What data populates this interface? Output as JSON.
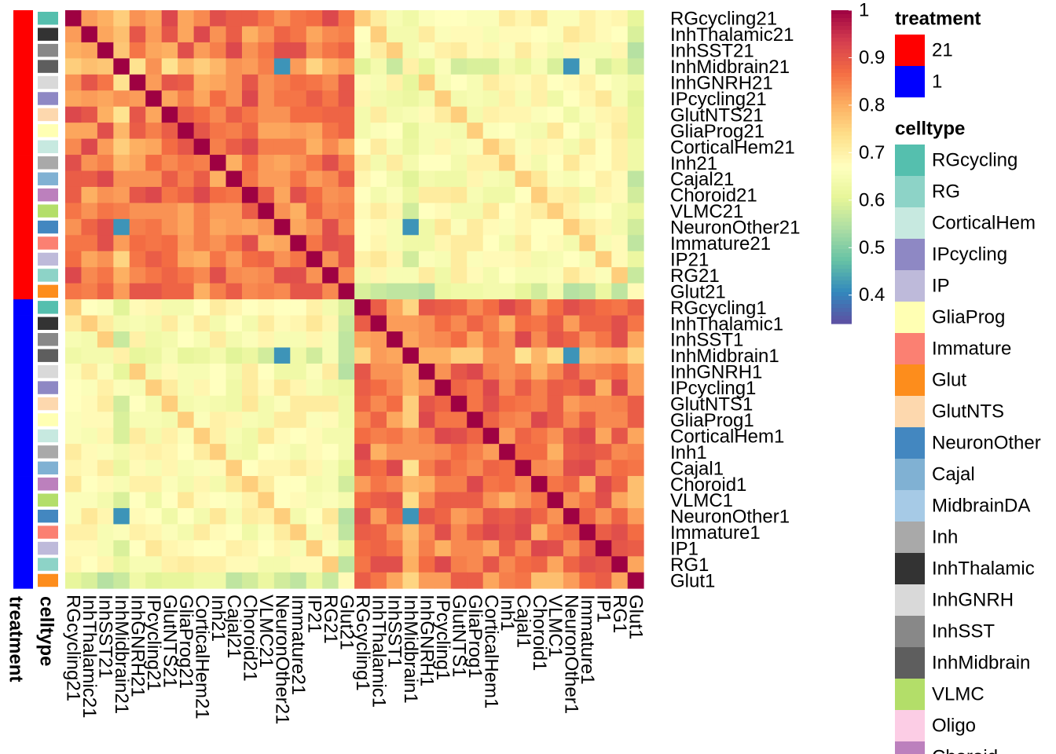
{
  "chart_data": {
    "type": "heatmap",
    "row_labels": [
      "RGcycling21",
      "InhThalamic21",
      "InhSST21",
      "InhMidbrain21",
      "InhGNRH21",
      "IPcycling21",
      "GlutNTS21",
      "GliaProg21",
      "CorticalHem21",
      "Inh21",
      "Cajal21",
      "Choroid21",
      "VLMC21",
      "NeuronOther21",
      "Immature21",
      "IP21",
      "RG21",
      "Glut21",
      "RGcycling1",
      "InhThalamic1",
      "InhSST1",
      "InhMidbrain1",
      "InhGNRH1",
      "IPcycling1",
      "GlutNTS1",
      "GliaProg1",
      "CorticalHem1",
      "Inh1",
      "Cajal1",
      "Choroid1",
      "VLMC1",
      "NeuronOther1",
      "Immature1",
      "IP1",
      "RG1",
      "Glut1"
    ],
    "col_labels": [
      "RGcycling21",
      "InhThalamic21",
      "InhSST21",
      "InhMidbrain21",
      "InhGNRH21",
      "IPcycling21",
      "GlutNTS21",
      "GliaProg21",
      "CorticalHem21",
      "Inh21",
      "Cajal21",
      "Choroid21",
      "VLMC21",
      "NeuronOther21",
      "Immature21",
      "IP21",
      "RG21",
      "Glut21",
      "RGcycling1",
      "InhThalamic1",
      "InhSST1",
      "InhMidbrain1",
      "InhGNRH1",
      "IPcycling1",
      "GlutNTS1",
      "GliaProg1",
      "CorticalHem1",
      "Inh1",
      "Cajal1",
      "Choroid1",
      "VLMC1",
      "NeuronOther1",
      "Immature1",
      "IP1",
      "RG1",
      "Glut1"
    ],
    "row_treatment": [
      "21",
      "21",
      "21",
      "21",
      "21",
      "21",
      "21",
      "21",
      "21",
      "21",
      "21",
      "21",
      "21",
      "21",
      "21",
      "21",
      "21",
      "21",
      "1",
      "1",
      "1",
      "1",
      "1",
      "1",
      "1",
      "1",
      "1",
      "1",
      "1",
      "1",
      "1",
      "1",
      "1",
      "1",
      "1",
      "1"
    ],
    "row_celltype": [
      "RGcycling",
      "InhThalamic",
      "InhSST",
      "InhMidbrain",
      "InhGNRH",
      "IPcycling",
      "GlutNTS",
      "GliaProg",
      "CorticalHem",
      "Inh",
      "Cajal",
      "Choroid",
      "VLMC",
      "NeuronOther",
      "Immature",
      "IP",
      "RG",
      "Glut",
      "RGcycling",
      "InhThalamic",
      "InhSST",
      "InhMidbrain",
      "InhGNRH",
      "IPcycling",
      "GlutNTS",
      "GliaProg",
      "CorticalHem",
      "Inh",
      "Cajal",
      "Choroid",
      "VLMC",
      "NeuronOther",
      "Immature",
      "IP",
      "RG",
      "Glut"
    ],
    "color_scale": {
      "min": 0.34,
      "max": 1.0,
      "ticks": [
        1,
        0.9,
        0.8,
        0.7,
        0.6,
        0.5,
        0.4
      ]
    },
    "colormap": [
      "#5E4FA2",
      "#3288BD",
      "#66C2A5",
      "#ABDDA4",
      "#E6F598",
      "#FFFFBF",
      "#FEE08B",
      "#FDAE61",
      "#F46D43",
      "#D53E4F",
      "#9E0142"
    ],
    "annotation_labels": {
      "treatment": "treatment",
      "celltype": "celltype"
    },
    "legend": {
      "treatment": {
        "title": "treatment",
        "entries": [
          {
            "label": "21",
            "color": "#FF0000"
          },
          {
            "label": "1",
            "color": "#0000FF"
          }
        ]
      },
      "celltype": {
        "title": "celltype",
        "entries": [
          {
            "label": "RGcycling",
            "color": "#55BFAE"
          },
          {
            "label": "RG",
            "color": "#8DD3C7"
          },
          {
            "label": "CorticalHem",
            "color": "#C7E9E0"
          },
          {
            "label": "IPcycling",
            "color": "#8E88C4"
          },
          {
            "label": "IP",
            "color": "#BEBADA"
          },
          {
            "label": "GliaProg",
            "color": "#FFFFB3"
          },
          {
            "label": "Immature",
            "color": "#FB8072"
          },
          {
            "label": "Glut",
            "color": "#FD8D1C"
          },
          {
            "label": "GlutNTS",
            "color": "#FDD8AE"
          },
          {
            "label": "NeuronOther",
            "color": "#4387C0"
          },
          {
            "label": "Cajal",
            "color": "#80B1D3"
          },
          {
            "label": "MidbrainDA",
            "color": "#A6CAE6"
          },
          {
            "label": "Inh",
            "color": "#A9A9A9"
          },
          {
            "label": "InhThalamic",
            "color": "#333333"
          },
          {
            "label": "InhGNRH",
            "color": "#D9D9D9"
          },
          {
            "label": "InhSST",
            "color": "#888888"
          },
          {
            "label": "InhMidbrain",
            "color": "#5E5E5E"
          },
          {
            "label": "VLMC",
            "color": "#B3DE69"
          },
          {
            "label": "Oligo",
            "color": "#FCCDE5"
          },
          {
            "label": "Choroid",
            "color": "#BC80BD"
          }
        ]
      }
    }
  }
}
